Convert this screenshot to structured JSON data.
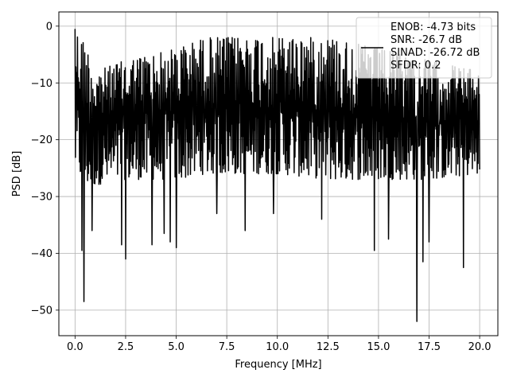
{
  "chart_data": {
    "type": "line",
    "title": "",
    "xlabel": "Frequency [MHz]",
    "ylabel": "PSD [dB]",
    "xlim": [
      -0.8,
      20.9
    ],
    "ylim": [
      -54.5,
      2.5
    ],
    "x_ticks": [
      0.0,
      2.5,
      5.0,
      7.5,
      10.0,
      12.5,
      15.0,
      17.5,
      20.0
    ],
    "x_tick_labels": [
      "0.0",
      "2.5",
      "5.0",
      "7.5",
      "10.0",
      "12.5",
      "15.0",
      "17.5",
      "20.0"
    ],
    "y_ticks": [
      0,
      -10,
      -20,
      -30,
      -40,
      -50
    ],
    "y_tick_labels": [
      "0",
      "−10",
      "−20",
      "−30",
      "−40",
      "−50"
    ],
    "grid": true,
    "legend_position": "top-right",
    "series": [
      {
        "name": "ENOB: -4.73 bits\nSNR: -26.7 dB\nSINAD: -26.72 dB\nSFDR: 0.2",
        "color": "#000000",
        "x_start": 0.0,
        "x_end": 20.0,
        "points": 1000,
        "envelope": {
          "x": [
            0.0,
            0.5,
            1.0,
            2.5,
            5.0,
            6.5,
            10.0,
            12.5,
            15.0,
            17.5,
            20.0
          ],
          "upper": [
            -0.5,
            -3,
            -8,
            -6,
            -4,
            -2,
            -2,
            -2,
            -4,
            -6,
            -8
          ],
          "lower": [
            -25,
            -28,
            -28,
            -27,
            -27,
            -26,
            -26,
            -27,
            -27,
            -27,
            -26
          ]
        },
        "notable_minima": [
          {
            "x": 0.35,
            "y": -39.5
          },
          {
            "x": 0.45,
            "y": -48.5
          },
          {
            "x": 0.85,
            "y": -36.0
          },
          {
            "x": 2.3,
            "y": -38.5
          },
          {
            "x": 2.5,
            "y": -41.0
          },
          {
            "x": 3.8,
            "y": -38.5
          },
          {
            "x": 4.4,
            "y": -36.5
          },
          {
            "x": 4.7,
            "y": -38.0
          },
          {
            "x": 5.0,
            "y": -39.0
          },
          {
            "x": 7.0,
            "y": -33.0
          },
          {
            "x": 8.4,
            "y": -36.0
          },
          {
            "x": 9.8,
            "y": -33.0
          },
          {
            "x": 12.2,
            "y": -34.0
          },
          {
            "x": 14.8,
            "y": -39.5
          },
          {
            "x": 15.5,
            "y": -37.5
          },
          {
            "x": 16.9,
            "y": -52.0
          },
          {
            "x": 17.2,
            "y": -41.5
          },
          {
            "x": 17.5,
            "y": -38.0
          },
          {
            "x": 19.2,
            "y": -42.5
          }
        ],
        "peak": {
          "x": 0.02,
          "y": -0.5
        }
      }
    ]
  }
}
